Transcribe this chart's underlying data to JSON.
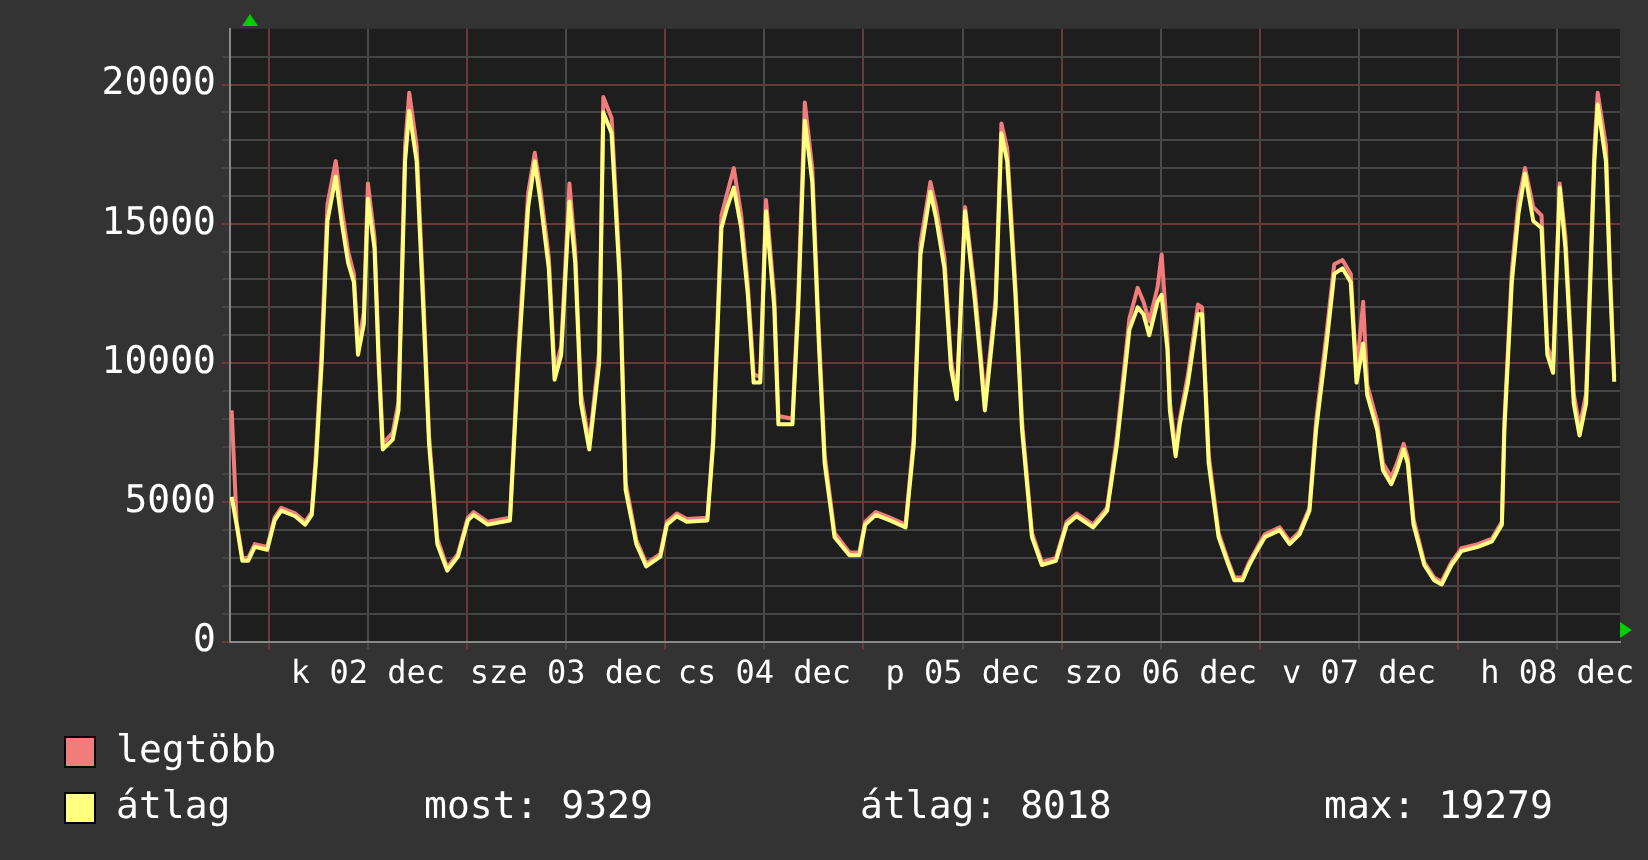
{
  "chart_data": {
    "type": "line",
    "x": [
      "--12-01T19:30",
      "--12-01T20:06",
      "--12-01T20:48",
      "--12-01T21:30",
      "--12-01T22:18",
      "--12-01T23:48",
      "--12-02T00:42",
      "--12-02T01:30",
      "--12-02T03:12",
      "--12-02T04:24",
      "--12-02T05:12",
      "--12-02T05:42",
      "--12-02T06:24",
      "--12-02T07:06",
      "--12-02T08:06",
      "--12-02T08:48",
      "--12-02T09:36",
      "--12-02T10:18",
      "--12-02T10:48",
      "--12-02T11:30",
      "--12-02T12:00",
      "--12-02T12:48",
      "--12-02T13:18",
      "--12-02T13:48",
      "--12-02T15:00",
      "--12-02T15:42",
      "--12-02T16:30",
      "--12-02T17:00",
      "--12-02T17:54",
      "--12-02T18:42",
      "--12-02T19:24",
      "--12-02T20:24",
      "--12-02T21:36",
      "--12-02T22:54",
      "--12-03T00:06",
      "--12-03T00:48",
      "--12-03T02:30",
      "--12-03T05:12",
      "--12-03T06:12",
      "--12-03T07:24",
      "--12-03T08:12",
      "--12-03T08:54",
      "--12-03T09:54",
      "--12-03T10:36",
      "--12-03T11:24",
      "--12-03T12:24",
      "--12-03T13:06",
      "--12-03T13:48",
      "--12-03T14:48",
      "--12-03T16:00",
      "--12-03T16:30",
      "--12-03T17:30",
      "--12-03T18:30",
      "--12-03T19:12",
      "--12-03T20:30",
      "--12-03T21:42",
      "--12-03T23:24",
      "--12-04T00:12",
      "--12-04T01:24",
      "--12-04T02:36",
      "--12-04T05:06",
      "--12-04T05:48",
      "--12-04T06:48",
      "--12-04T07:30",
      "--12-04T08:18",
      "--12-04T09:12",
      "--12-04T10:00",
      "--12-04T10:42",
      "--12-04T11:30",
      "--12-04T12:12",
      "--12-04T13:12",
      "--12-04T13:42",
      "--12-04T15:24",
      "--12-04T16:06",
      "--12-04T16:54",
      "--12-04T17:48",
      "--12-04T18:36",
      "--12-04T19:18",
      "--12-04T20:30",
      "--12-04T22:18",
      "--12-04T23:30",
      "--12-05T00:12",
      "--12-05T01:30",
      "--12-05T03:12",
      "--12-05T05:06",
      "--12-05T06:06",
      "--12-05T06:54",
      "--12-05T08:06",
      "--12-05T08:48",
      "--12-05T09:48",
      "--12-05T10:36",
      "--12-05T11:18",
      "--12-05T12:18",
      "--12-05T13:30",
      "--12-05T14:12",
      "--12-05T14:42",
      "--12-05T16:00",
      "--12-05T16:42",
      "--12-05T17:24",
      "--12-05T18:24",
      "--12-05T19:12",
      "--12-05T20:24",
      "--12-05T21:36",
      "--12-05T23:18",
      "--12-06T00:36",
      "--12-06T01:48",
      "--12-06T03:48",
      "--12-06T05:30",
      "--12-06T06:42",
      "--12-06T08:12",
      "--12-06T09:12",
      "--12-06T09:54",
      "--12-06T10:36",
      "--12-06T11:36",
      "--12-06T12:06",
      "--12-06T12:48",
      "--12-06T13:06",
      "--12-06T13:48",
      "--12-06T14:18",
      "--12-06T15:18",
      "--12-06T16:30",
      "--12-06T17:00",
      "--12-06T17:48",
      "--12-06T19:00",
      "--12-06T20:12",
      "--12-06T20:54",
      "--12-06T21:54",
      "--12-06T22:42",
      "--12-06T23:54",
      "--12-07T00:36",
      "--12-07T02:24",
      "--12-07T03:36",
      "--12-07T04:48",
      "--12-07T06:00",
      "--12-07T06:48",
      "--12-07T08:00",
      "--12-07T09:00",
      "--12-07T10:00",
      "--12-07T11:00",
      "--12-07T11:42",
      "--12-07T12:30",
      "--12-07T13:00",
      "--12-07T14:12",
      "--12-07T14:54",
      "--12-07T15:54",
      "--12-07T16:36",
      "--12-07T17:24",
      "--12-07T17:54",
      "--12-07T18:36",
      "--12-07T19:54",
      "--12-07T21:06",
      "--12-07T22:00",
      "--12-07T23:12",
      "--12-08T00:24",
      "--12-08T02:24",
      "--12-08T04:06",
      "--12-08T05:18",
      "--12-08T05:36",
      "--12-08T06:30",
      "--12-08T07:18",
      "--12-08T08:06",
      "--12-08T09:06",
      "--12-08T10:06",
      "--12-08T10:48",
      "--12-08T11:30",
      "--12-08T12:18",
      "--12-08T13:00",
      "--12-08T14:00",
      "--12-08T14:42",
      "--12-08T15:30",
      "--12-08T16:30",
      "--12-08T16:54",
      "--12-08T17:54",
      "--12-08T18:24",
      "--12-08T18:54"
    ],
    "series": [
      {
        "name": "legtöbb",
        "color": "#f07c7c",
        "values": [
          8300,
          4300,
          3000,
          3000,
          3500,
          3400,
          4450,
          4800,
          4600,
          4300,
          4650,
          6700,
          10500,
          15700,
          17250,
          15600,
          14000,
          13200,
          10600,
          11800,
          16450,
          14500,
          10400,
          7100,
          7500,
          8600,
          17800,
          19700,
          17800,
          12500,
          7400,
          3700,
          2650,
          3150,
          4450,
          4650,
          4300,
          4450,
          10400,
          16100,
          17550,
          16200,
          13800,
          9700,
          10600,
          16450,
          14000,
          8900,
          7100,
          10400,
          19550,
          18800,
          13300,
          5700,
          3650,
          2800,
          3150,
          4300,
          4600,
          4400,
          4450,
          7300,
          15300,
          16100,
          17000,
          15300,
          12800,
          9600,
          9500,
          15850,
          12400,
          8100,
          8000,
          12400,
          19350,
          17000,
          11100,
          6700,
          3900,
          3200,
          3200,
          4300,
          4650,
          4450,
          4200,
          7400,
          14300,
          16500,
          15600,
          13800,
          10100,
          8900,
          15600,
          12600,
          10300,
          8600,
          12300,
          18600,
          17700,
          12800,
          7900,
          3900,
          2850,
          3000,
          4300,
          4600,
          4200,
          4800,
          7400,
          11600,
          12700,
          12200,
          11500,
          12700,
          13900,
          10900,
          8600,
          6900,
          8000,
          9600,
          12100,
          12000,
          6700,
          3900,
          2850,
          2300,
          2300,
          2850,
          3500,
          3850,
          4100,
          3600,
          3950,
          4800,
          7900,
          10900,
          13550,
          13700,
          13200,
          9600,
          12200,
          9200,
          7900,
          6400,
          5900,
          6400,
          7100,
          6600,
          4400,
          2850,
          2300,
          2150,
          2850,
          3350,
          3500,
          3700,
          4300,
          7900,
          13300,
          15800,
          17000,
          15600,
          15300,
          10600,
          10000,
          16450,
          14500,
          8900,
          7700,
          8900,
          17700,
          19700,
          17800,
          13300,
          9500
        ]
      },
      {
        "name": "átlag",
        "color": "#ffff80",
        "values": [
          5200,
          4200,
          2900,
          2900,
          3400,
          3300,
          4350,
          4700,
          4500,
          4200,
          4550,
          6400,
          10000,
          15100,
          16700,
          15100,
          13600,
          12900,
          10300,
          11400,
          15900,
          14100,
          10000,
          6900,
          7250,
          8300,
          17250,
          19050,
          17250,
          12000,
          7100,
          3500,
          2550,
          3050,
          4350,
          4550,
          4200,
          4350,
          10000,
          15600,
          17250,
          15800,
          13400,
          9400,
          10300,
          15800,
          13600,
          8550,
          6900,
          10000,
          19000,
          18250,
          12900,
          5450,
          3500,
          2700,
          3050,
          4200,
          4500,
          4300,
          4350,
          7100,
          14850,
          15600,
          16300,
          14850,
          12450,
          9300,
          9300,
          15450,
          12000,
          7800,
          7800,
          12000,
          18700,
          16500,
          10700,
          6400,
          3750,
          3100,
          3100,
          4200,
          4550,
          4350,
          4100,
          7100,
          13900,
          16150,
          15200,
          13400,
          9800,
          8700,
          15450,
          12200,
          10000,
          8300,
          12000,
          18250,
          17250,
          12450,
          7600,
          3750,
          2750,
          2900,
          4200,
          4500,
          4100,
          4700,
          7100,
          11200,
          12000,
          11750,
          11000,
          12200,
          12450,
          10500,
          8300,
          6650,
          7800,
          9300,
          11750,
          11750,
          6400,
          3750,
          2750,
          2200,
          2200,
          2750,
          3400,
          3750,
          4000,
          3500,
          3850,
          4700,
          7600,
          10500,
          13200,
          13400,
          12900,
          9300,
          10700,
          8850,
          7600,
          6150,
          5650,
          6150,
          6900,
          6400,
          4200,
          2750,
          2200,
          2050,
          2750,
          3250,
          3400,
          3600,
          4200,
          7600,
          12900,
          15350,
          16800,
          15100,
          14850,
          10300,
          9650,
          16300,
          14100,
          8550,
          7400,
          8550,
          17250,
          19279,
          17250,
          12900,
          9329
        ]
      }
    ],
    "xlim": [
      "--12-01T19:18",
      "--12-08T19:36"
    ],
    "xticks": [
      {
        "value": "--12-02T00:00",
        "label": null
      },
      {
        "value": "--12-02T12:00",
        "label": "k 02 dec"
      },
      {
        "value": "--12-03T00:00",
        "label": null
      },
      {
        "value": "--12-03T12:00",
        "label": "sze 03 dec"
      },
      {
        "value": "--12-04T00:00",
        "label": null
      },
      {
        "value": "--12-04T12:00",
        "label": "cs 04 dec"
      },
      {
        "value": "--12-05T00:00",
        "label": null
      },
      {
        "value": "--12-05T12:00",
        "label": "p 05 dec"
      },
      {
        "value": "--12-06T00:00",
        "label": null
      },
      {
        "value": "--12-06T12:00",
        "label": "szo 06 dec"
      },
      {
        "value": "--12-07T00:00",
        "label": null
      },
      {
        "value": "--12-07T12:00",
        "label": "v 07 dec"
      },
      {
        "value": "--12-08T00:00",
        "label": null
      },
      {
        "value": "--12-08T12:00",
        "label": "h 08 dec"
      }
    ],
    "ylim": [
      0,
      22000
    ],
    "yticks": [
      0,
      {
        "value": 1000,
        "label": null
      },
      {
        "value": 2000,
        "label": null
      },
      {
        "value": 3000,
        "label": null
      },
      {
        "value": 4000,
        "label": null
      },
      5000,
      {
        "value": 6000,
        "label": null
      },
      {
        "value": 7000,
        "label": null
      },
      {
        "value": 8000,
        "label": null
      },
      {
        "value": 9000,
        "label": null
      },
      10000,
      {
        "value": 11000,
        "label": null
      },
      {
        "value": 12000,
        "label": null
      },
      {
        "value": 13000,
        "label": null
      },
      {
        "value": 14000,
        "label": null
      },
      15000,
      {
        "value": 16000,
        "label": null
      },
      {
        "value": 17000,
        "label": null
      },
      {
        "value": 18000,
        "label": null
      },
      {
        "value": 19000,
        "label": null
      },
      20000,
      {
        "value": 21000,
        "label": null
      }
    ],
    "grid": true,
    "legend": "bottom",
    "marker": "none",
    "line_style": "solid",
    "annotations": [
      "most: 9329",
      "átlag: 8018",
      "max: 19279"
    ]
  }
}
